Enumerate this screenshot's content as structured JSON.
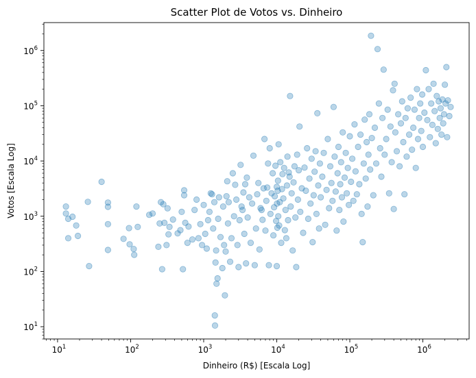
{
  "chart_data": {
    "type": "scatter",
    "title": "Scatter Plot de Votos vs. Dinheiro",
    "xlabel": "Dinheiro (R$) [Escala Log]",
    "ylabel": "Votos [Escala Log]",
    "xscale": "log",
    "yscale": "log",
    "xlim": [
      6.5,
      4300000
    ],
    "ylim": [
      6.0,
      3200000
    ],
    "xticks": [
      {
        "value": 10,
        "base": "10",
        "exp": "1"
      },
      {
        "value": 100,
        "base": "10",
        "exp": "2"
      },
      {
        "value": 1000,
        "base": "10",
        "exp": "3"
      },
      {
        "value": 10000,
        "base": "10",
        "exp": "4"
      },
      {
        "value": 100000,
        "base": "10",
        "exp": "5"
      },
      {
        "value": 1000000,
        "base": "10",
        "exp": "6"
      }
    ],
    "yticks": [
      {
        "value": 10,
        "base": "10",
        "exp": "1"
      },
      {
        "value": 100,
        "base": "10",
        "exp": "2"
      },
      {
        "value": 1000,
        "base": "10",
        "exp": "3"
      },
      {
        "value": 10000,
        "base": "10",
        "exp": "4"
      },
      {
        "value": 100000,
        "base": "10",
        "exp": "5"
      },
      {
        "value": 1000000,
        "base": "10",
        "exp": "6"
      }
    ],
    "grid": false,
    "legend": "none",
    "marker_color": "#1f77b4",
    "marker_alpha": 0.3,
    "points": [
      [
        13,
        1500
      ],
      [
        13,
        1120
      ],
      [
        14,
        400
      ],
      [
        14,
        900
      ],
      [
        16,
        980
      ],
      [
        18,
        680
      ],
      [
        19,
        440
      ],
      [
        26,
        1820
      ],
      [
        27,
        125
      ],
      [
        40,
        4200
      ],
      [
        49,
        1770
      ],
      [
        49,
        1480
      ],
      [
        49,
        720
      ],
      [
        49,
        245
      ],
      [
        80,
        390
      ],
      [
        95,
        610
      ],
      [
        97,
        310
      ],
      [
        110,
        255
      ],
      [
        112,
        200
      ],
      [
        120,
        1500
      ],
      [
        125,
        640
      ],
      [
        180,
        1060
      ],
      [
        200,
        1120
      ],
      [
        240,
        280
      ],
      [
        250,
        740
      ],
      [
        260,
        1800
      ],
      [
        270,
        110
      ],
      [
        280,
        1650
      ],
      [
        290,
        760
      ],
      [
        310,
        300
      ],
      [
        320,
        1390
      ],
      [
        330,
        470
      ],
      [
        340,
        640
      ],
      [
        380,
        870
      ],
      [
        440,
        490
      ],
      [
        480,
        560
      ],
      [
        500,
        1200
      ],
      [
        520,
        110
      ],
      [
        540,
        2950
      ],
      [
        540,
        2400
      ],
      [
        560,
        760
      ],
      [
        600,
        330
      ],
      [
        620,
        650
      ],
      [
        700,
        380
      ],
      [
        750,
        1300
      ],
      [
        800,
        2000
      ],
      [
        850,
        400
      ],
      [
        900,
        720
      ],
      [
        950,
        300
      ],
      [
        1000,
        1600
      ],
      [
        1050,
        480
      ],
      [
        1100,
        260
      ],
      [
        1150,
        850
      ],
      [
        1200,
        1200
      ],
      [
        1250,
        2600
      ],
      [
        1300,
        2500
      ],
      [
        1350,
        600
      ],
      [
        1400,
        1800
      ],
      [
        1420,
        16
      ],
      [
        1430,
        10.5
      ],
      [
        1450,
        145
      ],
      [
        1480,
        240
      ],
      [
        1500,
        60
      ],
      [
        1550,
        75
      ],
      [
        1580,
        900
      ],
      [
        1620,
        2200
      ],
      [
        1700,
        420
      ],
      [
        1800,
        115
      ],
      [
        1850,
        1500
      ],
      [
        1900,
        300
      ],
      [
        1950,
        37
      ],
      [
        2000,
        230
      ],
      [
        2050,
        2300
      ],
      [
        2100,
        4300
      ],
      [
        2150,
        740
      ],
      [
        2200,
        1800
      ],
      [
        2300,
        150
      ],
      [
        2400,
        400
      ],
      [
        2500,
        6000
      ],
      [
        2600,
        1000
      ],
      [
        2700,
        3700
      ],
      [
        2800,
        2000
      ],
      [
        2900,
        300
      ],
      [
        3000,
        120
      ],
      [
        3100,
        850
      ],
      [
        3200,
        8500
      ],
      [
        3300,
        1500
      ],
      [
        3400,
        1300
      ],
      [
        3500,
        2700
      ],
      [
        3600,
        480
      ],
      [
        3700,
        3800
      ],
      [
        3800,
        140
      ],
      [
        3900,
        5000
      ],
      [
        4000,
        950
      ],
      [
        4200,
        2200
      ],
      [
        4400,
        330
      ],
      [
        4600,
        1700
      ],
      [
        4800,
        12500
      ],
      [
        5000,
        130
      ],
      [
        5200,
        600
      ],
      [
        5400,
        2500
      ],
      [
        5600,
        4000
      ],
      [
        5800,
        250
      ],
      [
        6000,
        1400
      ],
      [
        6200,
        1300
      ],
      [
        6400,
        860
      ],
      [
        6600,
        3200
      ],
      [
        6800,
        25000
      ],
      [
        7000,
        550
      ],
      [
        7200,
        1900
      ],
      [
        7400,
        3300
      ],
      [
        7600,
        9000
      ],
      [
        7800,
        130
      ],
      [
        8000,
        17000
      ],
      [
        8200,
        1100
      ],
      [
        8500,
        2600
      ],
      [
        8800,
        6000
      ],
      [
        9000,
        450
      ],
      [
        9200,
        1450
      ],
      [
        9400,
        2300
      ],
      [
        9600,
        8200
      ],
      [
        9800,
        820
      ],
      [
        10000,
        125
      ],
      [
        10000,
        3400
      ],
      [
        10100,
        1700
      ],
      [
        10200,
        620
      ],
      [
        10300,
        2900
      ],
      [
        10400,
        4400
      ],
      [
        10500,
        1000
      ],
      [
        10600,
        20000
      ],
      [
        10800,
        680
      ],
      [
        11000,
        1800
      ],
      [
        11200,
        9500
      ],
      [
        11500,
        330
      ],
      [
        11800,
        3100
      ],
      [
        12000,
        5800
      ],
      [
        12300,
        2100
      ],
      [
        12600,
        7500
      ],
      [
        12900,
        560
      ],
      [
        13200,
        1300
      ],
      [
        13500,
        400
      ],
      [
        13800,
        3600
      ],
      [
        14000,
        12000
      ],
      [
        14300,
        850
      ],
      [
        14600,
        6200
      ],
      [
        15000,
        5200
      ],
      [
        15200,
        150000
      ],
      [
        15500,
        1500
      ],
      [
        16000,
        2600
      ],
      [
        16500,
        240
      ],
      [
        17000,
        4100
      ],
      [
        17500,
        8000
      ],
      [
        18000,
        950
      ],
      [
        18500,
        120
      ],
      [
        19000,
        13000
      ],
      [
        19500,
        2000
      ],
      [
        20000,
        6800
      ],
      [
        20500,
        42000
      ],
      [
        21000,
        1200
      ],
      [
        22000,
        3200
      ],
      [
        23000,
        500
      ],
      [
        24000,
        7600
      ],
      [
        25000,
        2900
      ],
      [
        26000,
        17000
      ],
      [
        27000,
        900
      ],
      [
        28000,
        4800
      ],
      [
        29000,
        1700
      ],
      [
        30000,
        11000
      ],
      [
        31000,
        340
      ],
      [
        32000,
        2400
      ],
      [
        33000,
        6400
      ],
      [
        34000,
        15000
      ],
      [
        35000,
        1100
      ],
      [
        36000,
        73000
      ],
      [
        37000,
        3600
      ],
      [
        38000,
        600
      ],
      [
        39000,
        9000
      ],
      [
        40000,
        2200
      ],
      [
        42000,
        5200
      ],
      [
        44000,
        14000
      ],
      [
        46000,
        700
      ],
      [
        48000,
        3000
      ],
      [
        50000,
        25000
      ],
      [
        52000,
        1400
      ],
      [
        54000,
        8000
      ],
      [
        56000,
        4000
      ],
      [
        58000,
        1900
      ],
      [
        60000,
        95000
      ],
      [
        62000,
        12000
      ],
      [
        64000,
        2800
      ],
      [
        66000,
        550
      ],
      [
        68000,
        6000
      ],
      [
        70000,
        18000
      ],
      [
        72000,
        1300
      ],
      [
        74000,
        3800
      ],
      [
        76000,
        9500
      ],
      [
        78000,
        2200
      ],
      [
        80000,
        33000
      ],
      [
        82000,
        800
      ],
      [
        85000,
        5000
      ],
      [
        88000,
        14000
      ],
      [
        91000,
        2600
      ],
      [
        94000,
        7500
      ],
      [
        97000,
        1600
      ],
      [
        100000,
        28000
      ],
      [
        104000,
        4200
      ],
      [
        108000,
        11000
      ],
      [
        112000,
        1900
      ],
      [
        116000,
        46000
      ],
      [
        120000,
        6500
      ],
      [
        125000,
        2500
      ],
      [
        130000,
        18000
      ],
      [
        135000,
        3800
      ],
      [
        140000,
        30000
      ],
      [
        145000,
        1100
      ],
      [
        150000,
        340
      ],
      [
        155000,
        9000
      ],
      [
        160000,
        56000
      ],
      [
        165000,
        4800
      ],
      [
        170000,
        22000
      ],
      [
        175000,
        1500
      ],
      [
        180000,
        13000
      ],
      [
        185000,
        70000
      ],
      [
        190000,
        7000
      ],
      [
        195000,
        1850000
      ],
      [
        200000,
        26000
      ],
      [
        210000,
        2400
      ],
      [
        220000,
        40000
      ],
      [
        230000,
        9000
      ],
      [
        240000,
        1060000
      ],
      [
        250000,
        110000
      ],
      [
        260000,
        17000
      ],
      [
        270000,
        5200
      ],
      [
        280000,
        60000
      ],
      [
        290000,
        450000
      ],
      [
        300000,
        13000
      ],
      [
        315000,
        25000
      ],
      [
        330000,
        85000
      ],
      [
        345000,
        2600
      ],
      [
        360000,
        42000
      ],
      [
        375000,
        9500
      ],
      [
        390000,
        190000
      ],
      [
        400000,
        1350
      ],
      [
        410000,
        250000
      ],
      [
        420000,
        33000
      ],
      [
        440000,
        15000
      ],
      [
        460000,
        70000
      ],
      [
        480000,
        8000
      ],
      [
        500000,
        48000
      ],
      [
        520000,
        120000
      ],
      [
        540000,
        22000
      ],
      [
        560000,
        2500
      ],
      [
        580000,
        60000
      ],
      [
        600000,
        12000
      ],
      [
        620000,
        90000
      ],
      [
        650000,
        30000
      ],
      [
        680000,
        140000
      ],
      [
        710000,
        16000
      ],
      [
        740000,
        40000
      ],
      [
        770000,
        85000
      ],
      [
        800000,
        7500
      ],
      [
        830000,
        200000
      ],
      [
        860000,
        25000
      ],
      [
        890000,
        60000
      ],
      [
        920000,
        110000
      ],
      [
        950000,
        35000
      ],
      [
        980000,
        160000
      ],
      [
        1000000,
        18000
      ],
      [
        1050000,
        75000
      ],
      [
        1100000,
        440000
      ],
      [
        1150000,
        55000
      ],
      [
        1200000,
        200000
      ],
      [
        1250000,
        27000
      ],
      [
        1300000,
        110000
      ],
      [
        1350000,
        45000
      ],
      [
        1400000,
        250000
      ],
      [
        1450000,
        80000
      ],
      [
        1500000,
        21000
      ],
      [
        1550000,
        150000
      ],
      [
        1600000,
        38000
      ],
      [
        1650000,
        120000
      ],
      [
        1700000,
        60000
      ],
      [
        1750000,
        90000
      ],
      [
        1800000,
        30000
      ],
      [
        1850000,
        130000
      ],
      [
        1900000,
        48000
      ],
      [
        1950000,
        70000
      ],
      [
        2000000,
        240000
      ],
      [
        2050000,
        110000
      ],
      [
        2100000,
        500000
      ],
      [
        2150000,
        27000
      ],
      [
        2200000,
        125000
      ],
      [
        2300000,
        65000
      ],
      [
        2400000,
        95000
      ]
    ]
  }
}
